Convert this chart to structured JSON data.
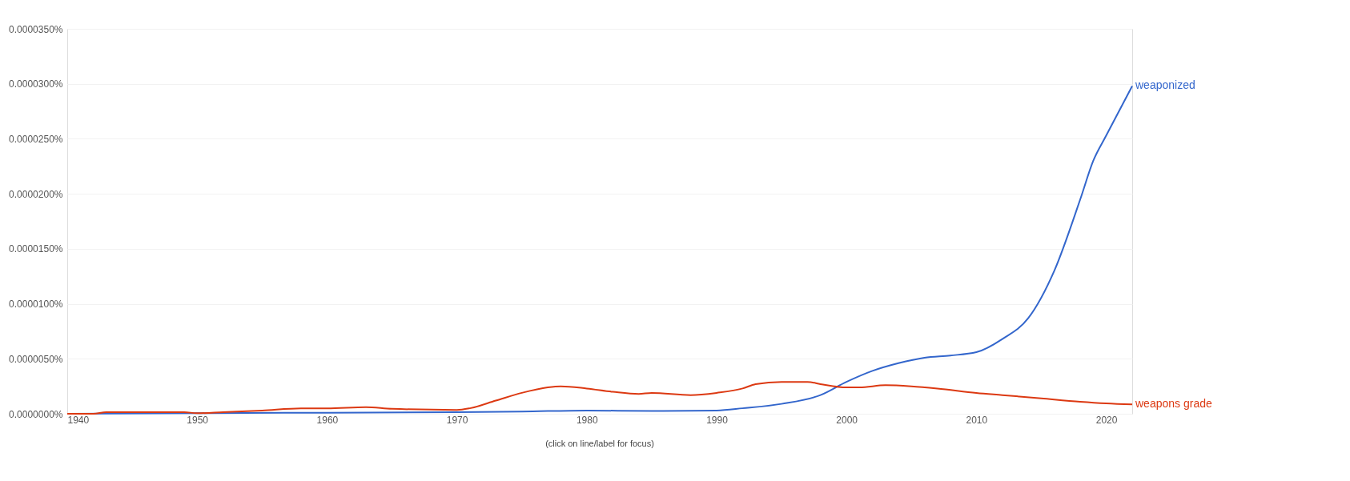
{
  "chart_data": {
    "type": "line",
    "annotations": [
      "(click on line/label for focus)"
    ],
    "xlim": [
      1940,
      2022
    ],
    "xticks": [
      1940,
      1950,
      1960,
      1970,
      1980,
      1990,
      2000,
      2010,
      2020
    ],
    "ylim": [
      0,
      3.5e-05
    ],
    "yticks": [
      {
        "value": 0,
        "label": "0.0000000%"
      },
      {
        "value": 5e-06,
        "label": "0.0000050%"
      },
      {
        "value": 1e-05,
        "label": "0.0000100%"
      },
      {
        "value": 1.5e-05,
        "label": "0.0000150%"
      },
      {
        "value": 2e-05,
        "label": "0.0000200%"
      },
      {
        "value": 2.5e-05,
        "label": "0.0000250%"
      },
      {
        "value": 3e-05,
        "label": "0.0000300%"
      },
      {
        "value": 3.5e-05,
        "label": "0.0000350%"
      }
    ],
    "grid": "y",
    "legend": false,
    "marker": "none",
    "line_style": "solid",
    "series": [
      {
        "name": "weaponized",
        "color": "#3366cc",
        "x": [
          1940,
          1950,
          1960,
          1970,
          1975,
          1980,
          1985,
          1990,
          1992,
          1995,
          1998,
          2000,
          2002,
          2004,
          2006,
          2008,
          2010,
          2012,
          2014,
          2016,
          2018,
          2019,
          2020,
          2022
        ],
        "values": [
          0,
          5e-08,
          1e-07,
          1.5e-07,
          2e-07,
          3e-07,
          2.5e-07,
          3e-07,
          5e-07,
          9e-07,
          1.7e-06,
          2.9e-06,
          3.9e-06,
          4.6e-06,
          5.1e-06,
          5.3e-06,
          5.6e-06,
          6.8e-06,
          8.7e-06,
          1.3e-05,
          1.95e-05,
          2.3e-05,
          2.53e-05,
          2.98e-05
        ]
      },
      {
        "name": "weapons grade",
        "color": "#dc3912",
        "x": [
          1940,
          1942,
          1943,
          1949,
          1950,
          1952,
          1955,
          1958,
          1960,
          1963,
          1965,
          1970,
          1971,
          1973,
          1975,
          1977,
          1978,
          1980,
          1982,
          1984,
          1985,
          1988,
          1990,
          1992,
          1993,
          1995,
          1997,
          1998,
          2000,
          2001,
          2003,
          2005,
          2007,
          2010,
          2012,
          2015,
          2018,
          2020,
          2022
        ],
        "values": [
          0,
          0,
          1.5e-07,
          1.5e-07,
          5e-08,
          1.5e-07,
          3e-07,
          5e-07,
          5e-07,
          6e-07,
          4.5e-07,
          3.5e-07,
          5e-07,
          1.2e-06,
          1.9e-06,
          2.4e-06,
          2.5e-06,
          2.3e-06,
          2e-06,
          1.8e-06,
          1.9e-06,
          1.7e-06,
          1.9e-06,
          2.3e-06,
          2.7e-06,
          2.9e-06,
          2.9e-06,
          2.7e-06,
          2.4e-06,
          2.4e-06,
          2.6e-06,
          2.5e-06,
          2.3e-06,
          1.9e-06,
          1.7e-06,
          1.4e-06,
          1.1e-06,
          9.5e-07,
          8.5e-07
        ]
      }
    ]
  }
}
